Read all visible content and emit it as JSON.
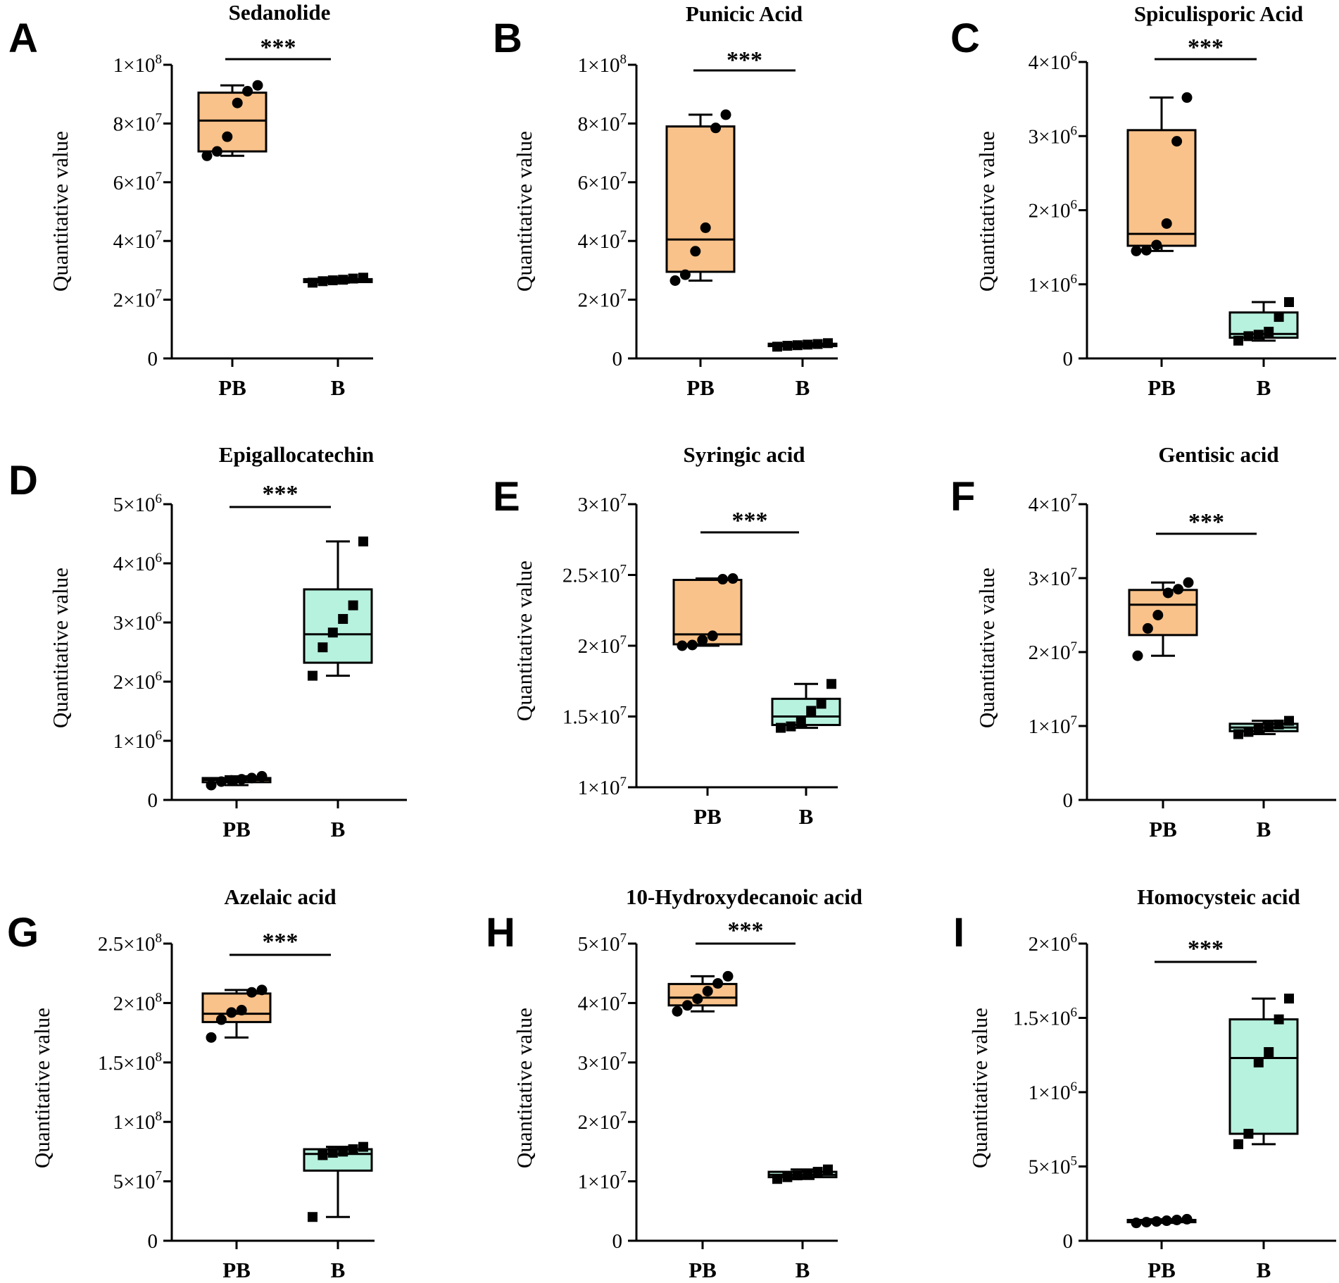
{
  "figure": {
    "y_axis_label": "Quantitative value",
    "group_colors": {
      "PB": "#f9c28a",
      "B": "#b7f2de"
    }
  },
  "chart_data": [
    {
      "panel": "A",
      "title": "Sedanolide",
      "type": "box",
      "ylabel": "Quantitative value",
      "ylim": [
        0,
        100000000
      ],
      "yticks": [
        {
          "v": 0,
          "m": "0",
          "e": ""
        },
        {
          "v": 20000000,
          "m": "2×10",
          "e": "7"
        },
        {
          "v": 40000000,
          "m": "4×10",
          "e": "7"
        },
        {
          "v": 60000000,
          "m": "6×10",
          "e": "7"
        },
        {
          "v": 80000000,
          "m": "8×10",
          "e": "7"
        },
        {
          "v": 100000000,
          "m": "1×10",
          "e": "8"
        }
      ],
      "categories": [
        "PB",
        "B"
      ],
      "significance": "***",
      "groups": [
        {
          "name": "PB",
          "color": "#f9c28a",
          "marker": "circle",
          "min": 69000000,
          "q1": 70500000,
          "median": 81000000,
          "q3": 90500000,
          "max": 93000000,
          "points": [
            69000000,
            70500000,
            75500000,
            87000000,
            91000000,
            93000000
          ]
        },
        {
          "name": "B",
          "color": "#b7f2de",
          "marker": "square",
          "min": 25800000,
          "q1": 26000000,
          "median": 26500000,
          "q3": 27000000,
          "max": 27500000,
          "points": [
            25800000,
            26300000,
            26600000,
            26800000,
            27200000,
            27500000
          ]
        }
      ]
    },
    {
      "panel": "B",
      "title": "Punicic Acid",
      "type": "box",
      "ylabel": "Quantitative value",
      "ylim": [
        0,
        100000000
      ],
      "yticks": [
        {
          "v": 0,
          "m": "0",
          "e": ""
        },
        {
          "v": 20000000,
          "m": "2×10",
          "e": "7"
        },
        {
          "v": 40000000,
          "m": "4×10",
          "e": "7"
        },
        {
          "v": 60000000,
          "m": "6×10",
          "e": "7"
        },
        {
          "v": 80000000,
          "m": "8×10",
          "e": "7"
        },
        {
          "v": 100000000,
          "m": "1×10",
          "e": "8"
        }
      ],
      "categories": [
        "PB",
        "B"
      ],
      "significance": "***",
      "groups": [
        {
          "name": "PB",
          "color": "#f9c28a",
          "marker": "circle",
          "min": 26500000,
          "q1": 29500000,
          "median": 40500000,
          "q3": 79000000,
          "max": 83000000,
          "points": [
            26500000,
            28500000,
            36500000,
            44500000,
            78500000,
            83000000
          ]
        },
        {
          "name": "B",
          "color": "#b7f2de",
          "marker": "square",
          "min": 4000000,
          "q1": 4200000,
          "median": 4600000,
          "q3": 5000000,
          "max": 5200000,
          "points": [
            4000000,
            4300000,
            4500000,
            4700000,
            4900000,
            5200000
          ]
        }
      ]
    },
    {
      "panel": "C",
      "title": "Spiculisporic Acid",
      "type": "box",
      "ylabel": "Quantitative value",
      "ylim": [
        0,
        4000000
      ],
      "yticks": [
        {
          "v": 0,
          "m": "0",
          "e": ""
        },
        {
          "v": 1000000,
          "m": "1×10",
          "e": "6"
        },
        {
          "v": 2000000,
          "m": "2×10",
          "e": "6"
        },
        {
          "v": 3000000,
          "m": "3×10",
          "e": "6"
        },
        {
          "v": 4000000,
          "m": "4×10",
          "e": "6"
        }
      ],
      "categories": [
        "PB",
        "B"
      ],
      "significance": "***",
      "groups": [
        {
          "name": "PB",
          "color": "#f9c28a",
          "marker": "circle",
          "min": 1450000,
          "q1": 1520000,
          "median": 1680000,
          "q3": 3080000,
          "max": 3520000,
          "points": [
            1450000,
            1460000,
            1530000,
            1820000,
            2930000,
            3520000
          ]
        },
        {
          "name": "B",
          "color": "#b7f2de",
          "marker": "square",
          "min": 240000,
          "q1": 280000,
          "median": 330000,
          "q3": 620000,
          "max": 760000,
          "points": [
            240000,
            300000,
            320000,
            360000,
            560000,
            760000
          ]
        }
      ]
    },
    {
      "panel": "D",
      "title": "Epigallocatechin",
      "type": "box",
      "ylabel": "Quantitative value",
      "ylim": [
        0,
        5000000
      ],
      "yticks": [
        {
          "v": 0,
          "m": "0",
          "e": ""
        },
        {
          "v": 1000000,
          "m": "1×10",
          "e": "6"
        },
        {
          "v": 2000000,
          "m": "2×10",
          "e": "6"
        },
        {
          "v": 3000000,
          "m": "3×10",
          "e": "6"
        },
        {
          "v": 4000000,
          "m": "4×10",
          "e": "6"
        },
        {
          "v": 5000000,
          "m": "5×10",
          "e": "6"
        }
      ],
      "categories": [
        "PB",
        "B"
      ],
      "significance": "***",
      "groups": [
        {
          "name": "PB",
          "color": "#f9c28a",
          "marker": "circle",
          "min": 250000,
          "q1": 300000,
          "median": 340000,
          "q3": 370000,
          "max": 400000,
          "points": [
            250000,
            310000,
            330000,
            350000,
            370000,
            400000
          ]
        },
        {
          "name": "B",
          "color": "#b7f2de",
          "marker": "square",
          "min": 2100000,
          "q1": 2320000,
          "median": 2800000,
          "q3": 3560000,
          "max": 4370000,
          "points": [
            2100000,
            2580000,
            2830000,
            3060000,
            3290000,
            4370000
          ]
        }
      ]
    },
    {
      "panel": "E",
      "title": "Syringic acid",
      "type": "box",
      "ylabel": "Quantitative value",
      "ylim": [
        10000000,
        30000000
      ],
      "yticks": [
        {
          "v": 10000000,
          "m": "1×10",
          "e": "7"
        },
        {
          "v": 15000000,
          "m": "1.5×10",
          "e": "7"
        },
        {
          "v": 20000000,
          "m": "2×10",
          "e": "7"
        },
        {
          "v": 25000000,
          "m": "2.5×10",
          "e": "7"
        },
        {
          "v": 30000000,
          "m": "3×10",
          "e": "7"
        }
      ],
      "categories": [
        "PB",
        "B"
      ],
      "significance": "***",
      "groups": [
        {
          "name": "PB",
          "color": "#f9c28a",
          "marker": "circle",
          "min": 20000000,
          "q1": 20100000,
          "median": 20800000,
          "q3": 24650000,
          "max": 24750000,
          "points": [
            20000000,
            20050000,
            20400000,
            20700000,
            24700000,
            24750000
          ]
        },
        {
          "name": "B",
          "color": "#b7f2de",
          "marker": "square",
          "min": 14200000,
          "q1": 14400000,
          "median": 15000000,
          "q3": 16250000,
          "max": 17300000,
          "points": [
            14200000,
            14300000,
            14600000,
            15400000,
            15900000,
            17300000
          ]
        }
      ]
    },
    {
      "panel": "F",
      "title": "Gentisic acid",
      "type": "box",
      "ylabel": "Quantitative value",
      "ylim": [
        0,
        40000000
      ],
      "yticks": [
        {
          "v": 0,
          "m": "0",
          "e": ""
        },
        {
          "v": 10000000,
          "m": "1×10",
          "e": "7"
        },
        {
          "v": 20000000,
          "m": "2×10",
          "e": "7"
        },
        {
          "v": 30000000,
          "m": "3×10",
          "e": "7"
        },
        {
          "v": 40000000,
          "m": "4×10",
          "e": "7"
        }
      ],
      "categories": [
        "PB",
        "B"
      ],
      "significance": "***",
      "groups": [
        {
          "name": "PB",
          "color": "#f9c28a",
          "marker": "circle",
          "min": 19500000,
          "q1": 22300000,
          "median": 26400000,
          "q3": 28400000,
          "max": 29400000,
          "points": [
            19500000,
            23200000,
            25000000,
            28000000,
            28500000,
            29400000
          ]
        },
        {
          "name": "B",
          "color": "#b7f2de",
          "marker": "square",
          "min": 8900000,
          "q1": 9300000,
          "median": 9800000,
          "q3": 10300000,
          "max": 10700000,
          "points": [
            8900000,
            9200000,
            9600000,
            9900000,
            10200000,
            10700000
          ]
        }
      ]
    },
    {
      "panel": "G",
      "title": "Azelaic acid",
      "type": "box",
      "ylabel": "Quantitative value",
      "ylim": [
        0,
        250000000
      ],
      "yticks": [
        {
          "v": 0,
          "m": "0",
          "e": ""
        },
        {
          "v": 50000000,
          "m": "5×10",
          "e": "7"
        },
        {
          "v": 100000000,
          "m": "1×10",
          "e": "8"
        },
        {
          "v": 150000000,
          "m": "1.5×10",
          "e": "8"
        },
        {
          "v": 200000000,
          "m": "2×10",
          "e": "8"
        },
        {
          "v": 250000000,
          "m": "2.5×10",
          "e": "8"
        }
      ],
      "categories": [
        "PB",
        "B"
      ],
      "significance": "***",
      "groups": [
        {
          "name": "PB",
          "color": "#f9c28a",
          "marker": "circle",
          "min": 171000000,
          "q1": 184000000,
          "median": 191000000,
          "q3": 208000000,
          "max": 211000000,
          "points": [
            171000000,
            186000000,
            192000000,
            194000000,
            209000000,
            211000000
          ]
        },
        {
          "name": "B",
          "color": "#b7f2de",
          "marker": "square",
          "min": 20000000,
          "q1": 59000000,
          "median": 73000000,
          "q3": 77000000,
          "max": 79000000,
          "points": [
            20000000,
            72000000,
            74000000,
            75000000,
            77000000,
            79000000
          ]
        }
      ]
    },
    {
      "panel": "H",
      "title": "10-Hydroxydecanoic acid",
      "type": "box",
      "ylabel": "Quantitative value",
      "ylim": [
        0,
        50000000
      ],
      "yticks": [
        {
          "v": 0,
          "m": "0",
          "e": ""
        },
        {
          "v": 10000000,
          "m": "1×10",
          "e": "7"
        },
        {
          "v": 20000000,
          "m": "2×10",
          "e": "7"
        },
        {
          "v": 30000000,
          "m": "3×10",
          "e": "7"
        },
        {
          "v": 40000000,
          "m": "4×10",
          "e": "7"
        },
        {
          "v": 50000000,
          "m": "5×10",
          "e": "7"
        }
      ],
      "categories": [
        "PB",
        "B"
      ],
      "significance": "***",
      "groups": [
        {
          "name": "PB",
          "color": "#f9c28a",
          "marker": "circle",
          "min": 38600000,
          "q1": 39600000,
          "median": 40900000,
          "q3": 43200000,
          "max": 44500000,
          "points": [
            38600000,
            39600000,
            40700000,
            42000000,
            43300000,
            44500000
          ]
        },
        {
          "name": "B",
          "color": "#b7f2de",
          "marker": "square",
          "min": 10400000,
          "q1": 10700000,
          "median": 11100000,
          "q3": 11600000,
          "max": 12000000,
          "points": [
            10400000,
            10700000,
            11000000,
            11300000,
            11600000,
            12000000
          ]
        }
      ]
    },
    {
      "panel": "I",
      "title": "Homocysteic acid",
      "type": "box",
      "ylabel": "Quantitative value",
      "ylim": [
        0,
        2000000
      ],
      "yticks": [
        {
          "v": 0,
          "m": "0",
          "e": ""
        },
        {
          "v": 500000,
          "m": "5×10",
          "e": "5"
        },
        {
          "v": 1000000,
          "m": "1×10",
          "e": "6"
        },
        {
          "v": 1500000,
          "m": "1.5×10",
          "e": "6"
        },
        {
          "v": 2000000,
          "m": "2×10",
          "e": "6"
        }
      ],
      "categories": [
        "PB",
        "B"
      ],
      "significance": "***",
      "groups": [
        {
          "name": "PB",
          "color": "#f9c28a",
          "marker": "circle",
          "min": 120000,
          "q1": 125000,
          "median": 130000,
          "q3": 140000,
          "max": 145000,
          "points": [
            120000,
            125000,
            130000,
            135000,
            140000,
            145000
          ]
        },
        {
          "name": "B",
          "color": "#b7f2de",
          "marker": "square",
          "min": 650000,
          "q1": 720000,
          "median": 1230000,
          "q3": 1490000,
          "max": 1630000,
          "points": [
            650000,
            720000,
            1200000,
            1270000,
            1490000,
            1630000
          ]
        }
      ]
    }
  ]
}
